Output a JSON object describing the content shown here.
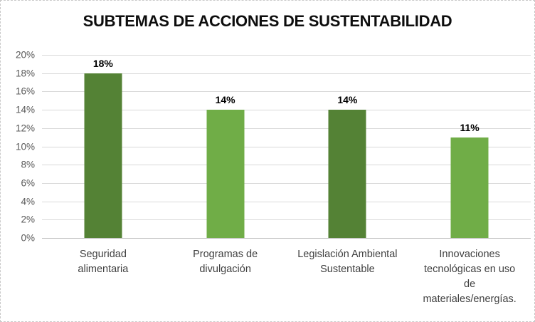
{
  "chart_data": {
    "type": "bar",
    "title": "SUBTEMAS DE ACCIONES DE SUSTENTABILIDAD",
    "categories": [
      "Seguridad alimentaria",
      "Programas de divulgación",
      "Legislación Ambiental Sustentable",
      "Innovaciones tecnológicas en uso de materiales/energías."
    ],
    "categories_wrapped": [
      "Seguridad\nalimentaria",
      "Programas de\ndivulgación",
      "Legislación Ambiental\nSustentable",
      "Innovaciones\ntecnológicas en uso\nde\nmateriales/energías."
    ],
    "values": [
      18,
      14,
      14,
      11
    ],
    "value_labels": [
      "18%",
      "14%",
      "14%",
      "11%"
    ],
    "xlabel": "",
    "ylabel": "",
    "ylim": [
      0,
      20
    ],
    "y_tick_step": 2,
    "y_tick_labels_top_to_bottom": [
      "20%",
      "18%",
      "16%",
      "14%",
      "12%",
      "10%",
      "8%",
      "6%",
      "4%",
      "2%",
      "0%"
    ],
    "bar_colors": [
      "#548235",
      "#70AD47",
      "#548235",
      "#70AD47"
    ],
    "colors": {
      "bar_dark_green": "#548235",
      "bar_light_green": "#70AD47",
      "gridline": "#d9d9d9",
      "axis_tick_text": "#595959",
      "category_text": "#3f3f3f",
      "title_text": "#0d0d0d",
      "frame_border": "#c9c9c9"
    },
    "grid": "horizontal",
    "legend": "none"
  }
}
